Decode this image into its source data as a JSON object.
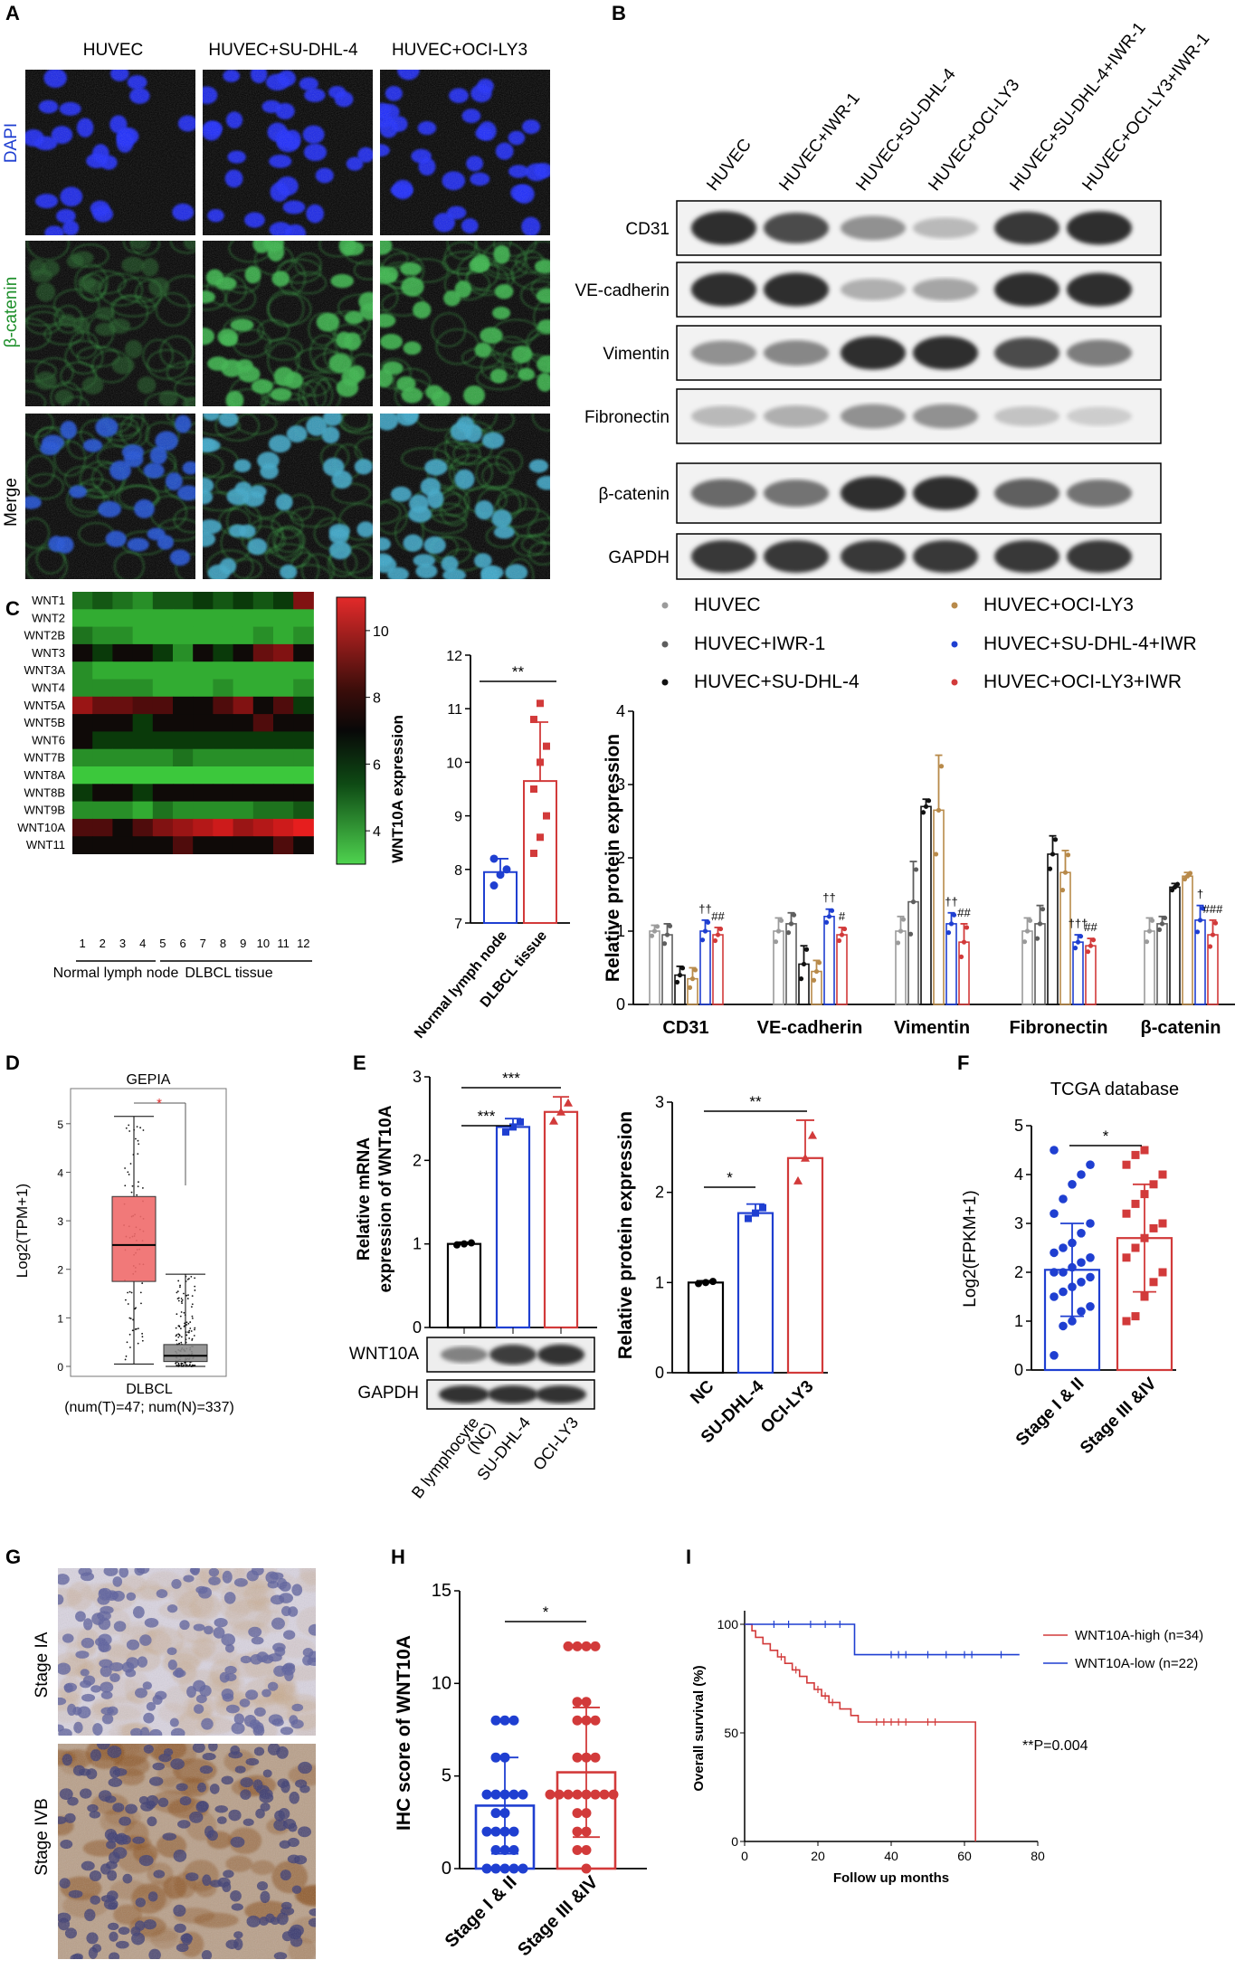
{
  "panel_letters": [
    "A",
    "B",
    "C",
    "D",
    "E",
    "F",
    "G",
    "H",
    "I"
  ],
  "colors": {
    "huvec": "#9b9b9b",
    "iwr": "#5e5e5e",
    "sudhl": "#111111",
    "ocily": "#b88a4a",
    "sudhl_iwr": "#1f3fd1",
    "ocily_iwr": "#d23a3a",
    "blue": "#1f3fd1",
    "red": "#d23a3a",
    "gepia_red": "#f06a6a",
    "gepia_gray": "#8c8c8c"
  },
  "panelA": {
    "columns": [
      "HUVEC",
      "HUVEC+SU-DHL-4",
      "HUVEC+OCI-LY3"
    ],
    "rows": [
      "DAPI",
      "β-catenin",
      "Merge"
    ]
  },
  "panelB": {
    "lanes": [
      "HUVEC",
      "HUVEC+IWR-1",
      "HUVEC+SU-DHL-4",
      "HUVEC+OCI-LY3",
      "HUVEC+SU-DHL-4+IWR-1",
      "HUVEC+OCI-LY3+IWR-1"
    ],
    "bands": [
      "CD31",
      "VE-cadherin",
      "Vimentin",
      "Fibronectin",
      "β-catenin",
      "GAPDH"
    ],
    "intensity": [
      [
        0.95,
        0.8,
        0.45,
        0.25,
        0.9,
        0.95
      ],
      [
        0.95,
        0.95,
        0.3,
        0.35,
        0.95,
        0.95
      ],
      [
        0.45,
        0.5,
        0.95,
        0.95,
        0.8,
        0.55
      ],
      [
        0.25,
        0.3,
        0.45,
        0.45,
        0.2,
        0.15
      ],
      [
        0.65,
        0.6,
        0.95,
        0.95,
        0.7,
        0.6
      ],
      [
        0.9,
        0.9,
        0.9,
        0.9,
        0.9,
        0.9
      ]
    ]
  },
  "panelC_heatmap": {
    "genes": [
      "WNT1",
      "WNT2",
      "WNT2B",
      "WNT3",
      "WNT3A",
      "WNT4",
      "WNT5A",
      "WNT5B",
      "WNT6",
      "WNT7B",
      "WNT8A",
      "WNT8B",
      "WNT9B",
      "WNT10A",
      "WNT11"
    ],
    "samples": [
      "1",
      "2",
      "3",
      "4",
      "5",
      "6",
      "7",
      "8",
      "9",
      "10",
      "11",
      "12"
    ],
    "group_labels": [
      "Normal lymph node",
      "DLBCL tissue"
    ],
    "colorbar_ticks": [
      "10",
      "8",
      "6",
      "4"
    ],
    "values": [
      [
        5,
        5.5,
        5,
        4.5,
        5.5,
        5.5,
        6,
        5.5,
        6,
        5.5,
        6,
        9
      ],
      [
        4,
        4,
        4,
        4,
        4,
        4,
        4,
        4,
        4,
        4,
        4,
        4
      ],
      [
        5,
        4.5,
        4.5,
        4,
        4,
        4,
        4,
        4,
        4,
        4.5,
        4,
        4.5
      ],
      [
        6.5,
        6,
        7,
        6.5,
        6,
        4.5,
        6.5,
        6,
        7,
        8.5,
        9,
        7
      ],
      [
        4.5,
        4,
        4,
        4,
        4,
        4,
        4,
        4,
        4,
        4,
        4,
        4
      ],
      [
        4.5,
        4.5,
        4.5,
        4.5,
        4,
        4,
        4,
        4.5,
        4,
        4,
        4,
        4.5
      ],
      [
        9.5,
        8.5,
        8.5,
        8,
        8,
        7,
        7.5,
        8,
        9,
        6.5,
        8,
        6
      ],
      [
        7,
        6.5,
        7,
        6,
        7,
        6.5,
        7.5,
        7,
        7.5,
        8,
        7,
        6.5
      ],
      [
        6.5,
        6,
        6,
        6,
        6,
        6,
        6,
        6,
        6,
        6,
        6,
        6
      ],
      [
        4.5,
        4.5,
        4.5,
        4.5,
        4.5,
        5,
        4.5,
        4.5,
        4.5,
        4.5,
        4.5,
        4.5
      ],
      [
        3.5,
        3.5,
        3.5,
        3.5,
        3.5,
        3.5,
        3.5,
        3.5,
        3.5,
        3.5,
        3.5,
        3.5
      ],
      [
        6,
        6.5,
        6.5,
        6,
        7,
        7.5,
        7,
        7.5,
        7.5,
        7,
        7,
        7.5
      ],
      [
        4.5,
        4.5,
        4.5,
        4,
        5,
        4.5,
        4.5,
        4.5,
        4.5,
        5,
        5,
        5.5
      ],
      [
        8,
        8,
        7.5,
        8,
        9,
        9.5,
        10,
        10.5,
        9.5,
        10,
        10.5,
        11
      ],
      [
        7,
        7,
        7,
        6.5,
        7.5,
        8,
        7,
        7.5,
        7.5,
        7,
        8,
        7.5
      ]
    ]
  },
  "chart_data": [
    {
      "type": "bar",
      "panel": "C (middle)",
      "categories": [
        "Normal lymph node",
        "DLBCL tissue"
      ],
      "values": [
        7.95,
        9.65
      ],
      "errors": [
        0.25,
        1.1
      ],
      "points": [
        [
          7.7,
          7.9,
          8.0,
          8.2
        ],
        [
          8.3,
          8.6,
          9.0,
          9.5,
          10.0,
          10.3,
          10.8,
          11.1
        ]
      ],
      "ylabel": "WNT10A expression",
      "ylim": [
        7,
        12
      ],
      "yticks": [
        7,
        8,
        9,
        10,
        11,
        12
      ],
      "significance": "**"
    },
    {
      "type": "bar",
      "panel": "C (right)",
      "categories": [
        "CD31",
        "VE-cadherin",
        "Vimentin",
        "Fibronectin",
        "β-catenin"
      ],
      "series": [
        {
          "name": "HUVEC",
          "values": [
            1.0,
            1.0,
            1.0,
            1.0,
            1.0
          ],
          "errors": [
            0.08,
            0.18,
            0.2,
            0.18,
            0.18
          ]
        },
        {
          "name": "HUVEC+IWR-1",
          "values": [
            0.95,
            1.1,
            1.4,
            1.1,
            1.1
          ],
          "errors": [
            0.15,
            0.15,
            0.55,
            0.25,
            0.1
          ]
        },
        {
          "name": "HUVEC+SU-DHL-4",
          "values": [
            0.4,
            0.55,
            2.7,
            2.05,
            1.6
          ],
          "errors": [
            0.12,
            0.25,
            0.1,
            0.25,
            0.05
          ]
        },
        {
          "name": "HUVEC+OCI-LY3",
          "values": [
            0.35,
            0.45,
            2.65,
            1.8,
            1.75
          ],
          "errors": [
            0.15,
            0.15,
            0.75,
            0.3,
            0.05
          ]
        },
        {
          "name": "HUVEC+SU-DHL-4+IWR",
          "values": [
            1.0,
            1.2,
            1.1,
            0.85,
            1.15
          ],
          "errors": [
            0.15,
            0.1,
            0.15,
            0.1,
            0.2
          ]
        },
        {
          "name": "HUVEC+OCI-LY3+IWR",
          "values": [
            0.95,
            0.95,
            0.85,
            0.8,
            0.95
          ],
          "errors": [
            0.1,
            0.1,
            0.25,
            0.1,
            0.2
          ]
        }
      ],
      "annotations": [
        "††",
        "##",
        "††",
        "#",
        "††",
        "##",
        "†††",
        "##",
        "†",
        "###"
      ],
      "ylabel": "Relative protein expression",
      "ylim": [
        0,
        4
      ],
      "yticks": [
        0,
        1,
        2,
        3,
        4
      ]
    },
    {
      "type": "box",
      "panel": "D",
      "title": "GEPIA",
      "categories": [
        "DLBCL"
      ],
      "groups": [
        {
          "median": 2.5,
          "q1": 1.75,
          "q3": 3.5,
          "min": 0.05,
          "max": 5.15
        },
        {
          "median": 0.22,
          "q1": 0.1,
          "q3": 0.45,
          "min": 0,
          "max": 1.9
        }
      ],
      "ylabel": "Log2(TPM+1)",
      "ylim": [
        0,
        5.5
      ],
      "yticks": [
        0,
        1,
        2,
        3,
        4,
        5
      ],
      "xlabel": "(num(T)=47; num(N)=337)",
      "significance": "*"
    },
    {
      "type": "bar",
      "panel": "E (mRNA)",
      "categories": [
        "B lymphocyte (NC)",
        "SU-DHL-4",
        "OCI-LY3"
      ],
      "values": [
        1.0,
        2.4,
        2.58
      ],
      "errors": [
        0.02,
        0.1,
        0.18
      ],
      "ylabel": "Relative mRNA expression of WNT10A",
      "ylim": [
        0,
        3
      ],
      "yticks": [
        0,
        1,
        2,
        3
      ],
      "significance": [
        "***",
        "***"
      ],
      "blot_labels": [
        "WNT10A",
        "GAPDH"
      ]
    },
    {
      "type": "bar",
      "panel": "E (protein)",
      "categories": [
        "NC",
        "SU-DHL-4",
        "OCI-LY3"
      ],
      "values": [
        1.0,
        1.77,
        2.38
      ],
      "errors": [
        0.02,
        0.1,
        0.42
      ],
      "ylabel": "Relative protein expression",
      "ylim": [
        0,
        3
      ],
      "yticks": [
        0,
        1,
        2,
        3
      ],
      "significance": [
        "*",
        "**"
      ]
    },
    {
      "type": "bar",
      "panel": "F",
      "title": "TCGA database",
      "categories": [
        "Stage I & II",
        "Stage III &IV"
      ],
      "values": [
        2.05,
        2.7
      ],
      "errors": [
        0.95,
        1.1
      ],
      "points": [
        [
          0.3,
          0.9,
          1.0,
          1.2,
          1.3,
          1.5,
          1.6,
          1.7,
          1.8,
          1.9,
          2.0,
          2.0,
          2.1,
          2.2,
          2.3,
          2.4,
          2.5,
          2.6,
          2.8,
          3.0,
          3.2,
          3.5,
          3.8,
          4.0,
          4.2,
          4.5
        ],
        [
          1.0,
          1.1,
          1.5,
          1.8,
          2.0,
          2.3,
          2.5,
          2.7,
          2.9,
          3.0,
          3.2,
          3.4,
          3.6,
          3.8,
          4.0,
          4.2,
          4.4,
          4.5
        ]
      ],
      "ylabel": "Log2(FPKM+1)",
      "ylim": [
        0,
        5
      ],
      "yticks": [
        0,
        1,
        2,
        3,
        4,
        5
      ],
      "significance": "*"
    },
    {
      "type": "bar",
      "panel": "H",
      "categories": [
        "Stage I & II",
        "Stage III &IV"
      ],
      "values": [
        3.4,
        5.2
      ],
      "errors": [
        2.6,
        3.5
      ],
      "points": [
        [
          0,
          0,
          0,
          0,
          0,
          1,
          1,
          1,
          2,
          2,
          2,
          2,
          3,
          3,
          4,
          4,
          4,
          4,
          4,
          6,
          6,
          8,
          8,
          8
        ],
        [
          0,
          1,
          1,
          2,
          2,
          3,
          3,
          4,
          4,
          4,
          4,
          4,
          4,
          4,
          4,
          6,
          6,
          6,
          8,
          8,
          8,
          9,
          9,
          12,
          12,
          12,
          12
        ]
      ],
      "ylabel": "IHC score of WNT10A",
      "ylim": [
        0,
        15
      ],
      "yticks": [
        0,
        5,
        10,
        15
      ],
      "significance": "*"
    },
    {
      "type": "line",
      "panel": "I",
      "series": [
        {
          "name": "WNT10A-high (n=34)",
          "x": [
            0,
            2,
            3,
            5,
            7,
            9,
            11,
            13,
            15,
            17,
            19,
            21,
            23,
            26,
            29,
            31,
            63,
            63
          ],
          "y": [
            100,
            97,
            94,
            91,
            88,
            85,
            82,
            79,
            76,
            73,
            70,
            67,
            64,
            61,
            58,
            55,
            55,
            0
          ]
        },
        {
          "name": "WNT10A-low (n=22)",
          "x": [
            0,
            28,
            30,
            75
          ],
          "y": [
            100,
            100,
            86,
            86
          ]
        }
      ],
      "ylabel": "Overall survival (%)",
      "xlabel": "Follow up months",
      "xlim": [
        0,
        80
      ],
      "ylim": [
        0,
        100
      ],
      "xticks": [
        0,
        20,
        40,
        60,
        80
      ],
      "yticks": [
        0,
        50,
        100
      ],
      "annotation": "**P=0.004"
    }
  ],
  "panelG": {
    "rows": [
      "Stage IA",
      "Stage IVB"
    ]
  }
}
